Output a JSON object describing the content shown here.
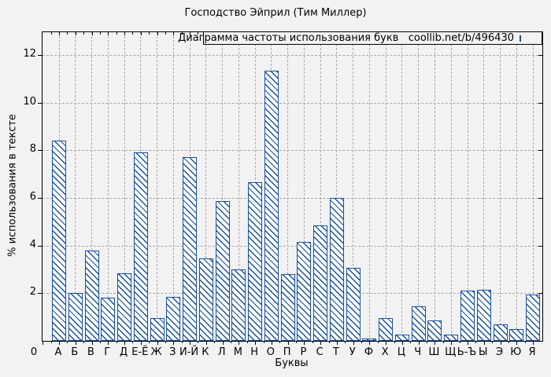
{
  "title": "Господство Эйприл (Тим Миллер)",
  "legend": {
    "label": "Диаграмма частоты использования букв   coollib.net/b/496430",
    "swatch_icon": "hatched-box-swatch"
  },
  "colors": {
    "bar": "#164fa2",
    "background": "#f2f2f2",
    "grid": "#a8a8a8",
    "frame": "#000000"
  },
  "chart_data": {
    "type": "bar",
    "title": "Господство Эйприл (Тим Миллер)",
    "xlabel": "Буквы",
    "ylabel": "% использования в тексте",
    "legend_label": "Диаграмма частоты использования букв   coollib.net/b/496430",
    "origin_tick_label": "0",
    "categories": [
      "А",
      "Б",
      "В",
      "Г",
      "Д",
      "Е-Ё",
      "Ж",
      "З",
      "И-Й",
      "К",
      "Л",
      "М",
      "Н",
      "О",
      "П",
      "Р",
      "С",
      "Т",
      "У",
      "Ф",
      "Х",
      "Ц",
      "Ч",
      "Ш",
      "Щ",
      "Ь-Ъ",
      "Ы",
      "Э",
      "Ю",
      "Я"
    ],
    "values": [
      8.4,
      2.0,
      3.8,
      1.8,
      2.85,
      7.9,
      0.95,
      1.85,
      7.7,
      3.45,
      5.85,
      3.0,
      6.65,
      11.35,
      2.8,
      4.15,
      4.85,
      6.0,
      3.05,
      0.1,
      0.95,
      0.28,
      1.45,
      0.85,
      0.25,
      2.1,
      2.15,
      0.7,
      0.48,
      1.95
    ],
    "yticks": [
      0,
      2,
      4,
      6,
      8,
      10,
      12
    ],
    "ylim": [
      0,
      12.95
    ],
    "grid": true,
    "hatch": "diagonal-backslash",
    "legend_position": "top-right"
  }
}
